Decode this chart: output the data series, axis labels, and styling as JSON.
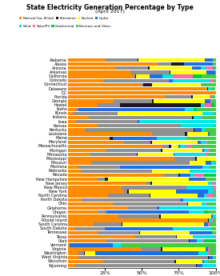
{
  "title": "State Electricity Generation Percentage by Type",
  "subtitle": "(April 2017)",
  "states": [
    "Alabama",
    "Alaska",
    "Arizona",
    "Arkansas",
    "California",
    "Colorado",
    "Connecticut",
    "Delaware",
    "DC",
    "Florida",
    "Georgia",
    "Hawaii",
    "Idaho",
    "Illinois",
    "Indiana",
    "Iowa",
    "Kansas",
    "Kentucky",
    "Louisiana",
    "Maine",
    "Maryland",
    "Massachusetts",
    "Michigan",
    "Minnesota",
    "Mississippi",
    "Missouri",
    "Montana",
    "Nebraska",
    "Nevada",
    "New Hampshire",
    "New Jersey",
    "New Mexico",
    "New York",
    "North Carolina",
    "North Dakota",
    "Ohio",
    "Oklahoma",
    "Oregon",
    "Pennsylvania",
    "Rhode Island",
    "South Carolina",
    "South Dakota",
    "Tennessee",
    "Texas",
    "Utah",
    "Vermont",
    "Virginia",
    "Washington",
    "West Virginia",
    "Wisconsin",
    "Wyoming"
  ],
  "categories": [
    "Natural Gas",
    "Coal",
    "Petroleum",
    "Nuclear",
    "Hydro",
    "Wind",
    "Solar/PV",
    "Geothermal",
    "Biomass and Other"
  ],
  "bar_colors": {
    "Natural Gas": "#FF8C00",
    "Coal": "#909090",
    "Petroleum": "#1a1a1a",
    "Nuclear": "#FFFF00",
    "Hydro": "#1E6FE0",
    "Wind": "#00E5E5",
    "Solar/PV": "#FF69B4",
    "Geothermal": "#00CC44",
    "Biomass and Other": "#44CC44"
  },
  "data": {
    "Alabama": [
      0.22,
      0.185,
      0.005,
      0.385,
      0.05,
      0.0,
      0.0,
      0.0,
      0.015
    ],
    "Alaska": [
      0.6,
      0.09,
      0.09,
      0.0,
      0.19,
      0.0,
      0.0,
      0.0,
      0.02
    ],
    "Arizona": [
      0.32,
      0.22,
      0.01,
      0.29,
      0.06,
      0.03,
      0.05,
      0.01,
      0.01
    ],
    "Arkansas": [
      0.42,
      0.27,
      0.005,
      0.24,
      0.06,
      0.0,
      0.0,
      0.0,
      0.005
    ],
    "California": [
      0.44,
      0.01,
      0.005,
      0.09,
      0.09,
      0.07,
      0.13,
      0.06,
      0.095
    ],
    "Colorado": [
      0.21,
      0.385,
      0.0,
      0.0,
      0.025,
      0.215,
      0.03,
      0.0,
      0.01
    ],
    "Connecticut": [
      0.5,
      0.01,
      0.06,
      0.33,
      0.0,
      0.0,
      0.01,
      0.0,
      0.09
    ],
    "Delaware": [
      0.93,
      0.0,
      0.005,
      0.0,
      0.0,
      0.02,
      0.0,
      0.0,
      0.03
    ],
    "DC": [
      1.0,
      0.0,
      0.0,
      0.0,
      0.0,
      0.0,
      0.0,
      0.0,
      0.0
    ],
    "Florida": [
      0.65,
      0.175,
      0.01,
      0.115,
      0.0,
      0.0,
      0.01,
      0.0,
      0.03
    ],
    "Georgia": [
      0.25,
      0.215,
      0.005,
      0.285,
      0.03,
      0.0,
      0.01,
      0.0,
      0.02
    ],
    "Hawaii": [
      0.2,
      0.15,
      0.55,
      0.0,
      0.0,
      0.02,
      0.05,
      0.02,
      0.01
    ],
    "Idaho": [
      0.05,
      0.02,
      0.0,
      0.0,
      0.72,
      0.06,
      0.0,
      0.02,
      0.13
    ],
    "Illinois": [
      0.03,
      0.27,
      0.0,
      0.52,
      0.0,
      0.07,
      0.0,
      0.0,
      0.01
    ],
    "Indiana": [
      0.14,
      0.7,
      0.01,
      0.0,
      0.0,
      0.05,
      0.01,
      0.0,
      0.09
    ],
    "Iowa": [
      0.05,
      0.415,
      0.0,
      0.0,
      0.01,
      0.515,
      0.0,
      0.0,
      0.0
    ],
    "Kansas": [
      0.2,
      0.565,
      0.0,
      0.0,
      0.0,
      0.225,
      0.0,
      0.0,
      0.01
    ],
    "Kentucky": [
      0.11,
      0.74,
      0.005,
      0.0,
      0.05,
      0.02,
      0.0,
      0.0,
      0.075
    ],
    "Louisiana": [
      0.57,
      0.22,
      0.02,
      0.14,
      0.01,
      0.0,
      0.0,
      0.0,
      0.04
    ],
    "Maine": [
      0.28,
      0.0,
      0.02,
      0.0,
      0.3,
      0.2,
      0.0,
      0.0,
      0.2
    ],
    "Maryland": [
      0.38,
      0.18,
      0.01,
      0.31,
      0.02,
      0.04,
      0.01,
      0.0,
      0.05
    ],
    "Massachusetts": [
      0.64,
      0.04,
      0.02,
      0.05,
      0.01,
      0.04,
      0.04,
      0.0,
      0.16
    ],
    "Michigan": [
      0.26,
      0.37,
      0.01,
      0.27,
      0.01,
      0.03,
      0.01,
      0.0,
      0.04
    ],
    "Minnesota": [
      0.15,
      0.32,
      0.005,
      0.245,
      0.01,
      0.21,
      0.01,
      0.0,
      0.06
    ],
    "Mississippi": [
      0.72,
      0.14,
      0.01,
      0.13,
      0.0,
      0.0,
      0.0,
      0.0,
      0.0
    ],
    "Missouri": [
      0.16,
      0.69,
      0.005,
      0.11,
      0.04,
      0.02,
      0.0,
      0.0,
      0.01
    ],
    "Montana": [
      0.07,
      0.28,
      0.0,
      0.0,
      0.56,
      0.05,
      0.0,
      0.0,
      0.04
    ],
    "Nebraska": [
      0.09,
      0.52,
      0.0,
      0.27,
      0.0,
      0.19,
      0.0,
      0.0,
      0.0
    ],
    "Nevada": [
      0.65,
      0.1,
      0.01,
      0.0,
      0.07,
      0.02,
      0.07,
      0.08,
      0.0
    ],
    "New Hampshire": [
      0.2,
      0.05,
      0.02,
      0.55,
      0.11,
      0.0,
      0.0,
      0.0,
      0.07
    ],
    "New Jersey": [
      0.54,
      0.03,
      0.01,
      0.39,
      0.0,
      0.02,
      0.02,
      0.0,
      0.01
    ],
    "New Mexico": [
      0.36,
      0.44,
      0.0,
      0.0,
      0.0,
      0.18,
      0.02,
      0.0,
      0.0
    ],
    "New York": [
      0.38,
      0.02,
      0.01,
      0.32,
      0.22,
      0.03,
      0.01,
      0.0,
      0.01
    ],
    "North Carolina": [
      0.27,
      0.28,
      0.01,
      0.32,
      0.04,
      0.02,
      0.04,
      0.0,
      0.02
    ],
    "North Dakota": [
      0.09,
      0.67,
      0.0,
      0.0,
      0.02,
      0.22,
      0.0,
      0.0,
      0.0
    ],
    "Ohio": [
      0.3,
      0.51,
      0.005,
      0.09,
      0.0,
      0.03,
      0.01,
      0.0,
      0.055
    ],
    "Oklahoma": [
      0.4,
      0.2,
      0.0,
      0.0,
      0.02,
      0.38,
      0.0,
      0.0,
      0.0
    ],
    "Oregon": [
      0.2,
      0.06,
      0.0,
      0.0,
      0.56,
      0.1,
      0.0,
      0.03,
      0.05
    ],
    "Pennsylvania": [
      0.34,
      0.28,
      0.01,
      0.34,
      0.01,
      0.02,
      0.0,
      0.0,
      0.0
    ],
    "Rhode Island": [
      0.95,
      0.0,
      0.005,
      0.0,
      0.0,
      0.02,
      0.01,
      0.0,
      0.015
    ],
    "South Carolina": [
      0.17,
      0.19,
      0.01,
      0.55,
      0.03,
      0.0,
      0.01,
      0.0,
      0.04
    ],
    "South Dakota": [
      0.04,
      0.21,
      0.0,
      0.0,
      0.46,
      0.26,
      0.0,
      0.0,
      0.03
    ],
    "Tennessee": [
      0.2,
      0.28,
      0.005,
      0.34,
      0.15,
      0.0,
      0.0,
      0.0,
      0.025
    ],
    "Texas": [
      0.46,
      0.28,
      0.005,
      0.11,
      0.0,
      0.145,
      0.01,
      0.0,
      0.0
    ],
    "Utah": [
      0.26,
      0.56,
      0.005,
      0.0,
      0.05,
      0.04,
      0.01,
      0.08,
      0.0
    ],
    "Vermont": [
      0.01,
      0.0,
      0.0,
      0.0,
      0.29,
      0.06,
      0.0,
      0.0,
      0.64
    ],
    "Virginia": [
      0.57,
      0.16,
      0.01,
      0.34,
      0.02,
      0.0,
      0.01,
      0.0,
      0.05
    ],
    "Washington": [
      0.07,
      0.04,
      0.005,
      0.07,
      0.7,
      0.07,
      0.01,
      0.0,
      0.04
    ],
    "West Virginia": [
      0.07,
      0.9,
      0.005,
      0.0,
      0.03,
      0.01,
      0.0,
      0.0,
      0.01
    ],
    "Wisconsin": [
      0.24,
      0.48,
      0.01,
      0.18,
      0.01,
      0.03,
      0.0,
      0.0,
      0.05
    ],
    "Wyoming": [
      0.05,
      0.83,
      0.005,
      0.0,
      0.04,
      0.09,
      0.0,
      0.0,
      0.0
    ]
  },
  "figsize": [
    2.75,
    3.45
  ],
  "dpi": 100
}
